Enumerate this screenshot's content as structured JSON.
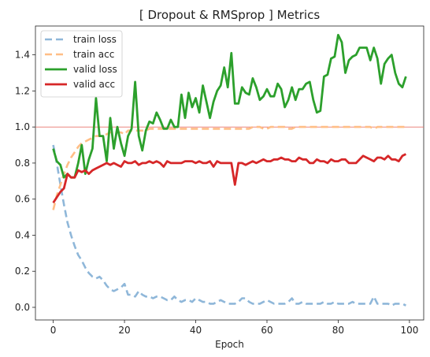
{
  "chart_data": {
    "type": "line",
    "title": "[ Dropout & RMSprop ]   Metrics",
    "xlabel": "Epoch",
    "ylabel": "",
    "xlim": [
      -5,
      104
    ],
    "ylim": [
      -0.07,
      1.56
    ],
    "xticks": [
      0,
      20,
      40,
      60,
      80,
      100
    ],
    "yticks": [
      0.0,
      0.2,
      0.4,
      0.6,
      0.8,
      1.0,
      1.2,
      1.4
    ],
    "ytick_labels": [
      "0.0",
      "0.2",
      "0.4",
      "0.6",
      "0.8",
      "1.0",
      "1.2",
      "1.4"
    ],
    "grid": false,
    "legend_position": "top-left",
    "reference_line": {
      "y": 1.0,
      "color": "#e8746c"
    },
    "series": [
      {
        "name": "train loss",
        "color": "#8fb7d9",
        "style": "dashed",
        "x": [
          0,
          1,
          2,
          3,
          4,
          5,
          6,
          7,
          8,
          9,
          10,
          11,
          12,
          13,
          14,
          15,
          16,
          17,
          18,
          19,
          20,
          21,
          22,
          23,
          24,
          25,
          26,
          27,
          28,
          29,
          30,
          31,
          32,
          33,
          34,
          35,
          36,
          37,
          38,
          39,
          40,
          41,
          42,
          43,
          44,
          45,
          46,
          47,
          48,
          49,
          50,
          51,
          52,
          53,
          54,
          55,
          56,
          57,
          58,
          59,
          60,
          61,
          62,
          63,
          64,
          65,
          66,
          67,
          68,
          69,
          70,
          71,
          72,
          73,
          74,
          75,
          76,
          77,
          78,
          79,
          80,
          81,
          82,
          83,
          84,
          85,
          86,
          87,
          88,
          89,
          90,
          91,
          92,
          93,
          94,
          95,
          96,
          97,
          98,
          99
        ],
        "values": [
          0.9,
          0.8,
          0.68,
          0.57,
          0.47,
          0.4,
          0.34,
          0.29,
          0.26,
          0.22,
          0.19,
          0.17,
          0.16,
          0.17,
          0.15,
          0.12,
          0.1,
          0.09,
          0.1,
          0.11,
          0.13,
          0.07,
          0.07,
          0.06,
          0.09,
          0.07,
          0.06,
          0.06,
          0.05,
          0.06,
          0.06,
          0.05,
          0.04,
          0.04,
          0.06,
          0.04,
          0.03,
          0.04,
          0.04,
          0.03,
          0.05,
          0.04,
          0.03,
          0.03,
          0.02,
          0.02,
          0.03,
          0.04,
          0.03,
          0.02,
          0.02,
          0.02,
          0.03,
          0.05,
          0.05,
          0.03,
          0.02,
          0.02,
          0.02,
          0.03,
          0.04,
          0.03,
          0.02,
          0.02,
          0.02,
          0.02,
          0.03,
          0.05,
          0.02,
          0.02,
          0.03,
          0.02,
          0.02,
          0.02,
          0.02,
          0.02,
          0.03,
          0.02,
          0.02,
          0.03,
          0.02,
          0.02,
          0.02,
          0.02,
          0.03,
          0.02,
          0.02,
          0.02,
          0.02,
          0.02,
          0.06,
          0.02,
          0.02,
          0.02,
          0.02,
          0.01,
          0.02,
          0.02,
          0.02,
          0.01
        ]
      },
      {
        "name": "train acc",
        "color": "#ffbe86",
        "style": "dashed",
        "x": [
          0,
          1,
          2,
          3,
          4,
          5,
          6,
          7,
          8,
          9,
          10,
          11,
          12,
          13,
          14,
          15,
          16,
          17,
          18,
          19,
          20,
          21,
          22,
          23,
          24,
          25,
          26,
          27,
          28,
          29,
          30,
          31,
          32,
          33,
          34,
          35,
          36,
          37,
          38,
          39,
          40,
          41,
          42,
          43,
          44,
          45,
          46,
          47,
          48,
          49,
          50,
          51,
          52,
          53,
          54,
          55,
          56,
          57,
          58,
          59,
          60,
          61,
          62,
          63,
          64,
          65,
          66,
          67,
          68,
          69,
          70,
          71,
          72,
          73,
          74,
          75,
          76,
          77,
          78,
          79,
          80,
          81,
          82,
          83,
          84,
          85,
          86,
          87,
          88,
          89,
          90,
          91,
          92,
          93,
          94,
          95,
          96,
          97,
          98,
          99
        ],
        "values": [
          0.54,
          0.62,
          0.68,
          0.74,
          0.79,
          0.83,
          0.86,
          0.89,
          0.91,
          0.92,
          0.93,
          0.94,
          0.95,
          0.95,
          0.95,
          0.96,
          0.97,
          0.97,
          0.97,
          0.97,
          0.96,
          0.98,
          0.98,
          0.98,
          0.98,
          0.98,
          0.98,
          0.99,
          0.99,
          0.99,
          0.99,
          0.99,
          0.99,
          0.99,
          0.99,
          0.99,
          0.99,
          0.99,
          0.99,
          0.99,
          0.99,
          0.99,
          0.99,
          0.99,
          0.99,
          0.99,
          0.99,
          0.99,
          0.99,
          0.99,
          0.99,
          0.99,
          0.99,
          0.99,
          0.99,
          0.99,
          1.0,
          1.0,
          1.0,
          0.99,
          0.99,
          1.0,
          1.0,
          1.0,
          1.0,
          1.0,
          0.99,
          0.99,
          1.0,
          1.0,
          1.0,
          1.0,
          1.0,
          1.0,
          1.0,
          1.0,
          1.0,
          1.0,
          1.0,
          1.0,
          1.0,
          1.0,
          1.0,
          1.0,
          1.0,
          1.0,
          1.0,
          1.0,
          1.0,
          1.0,
          0.99,
          1.0,
          1.0,
          1.0,
          1.0,
          1.0,
          1.0,
          1.0,
          1.0,
          1.0
        ]
      },
      {
        "name": "valid loss",
        "color": "#2ca02c",
        "style": "solid",
        "x": [
          0,
          1,
          2,
          3,
          4,
          5,
          6,
          7,
          8,
          9,
          10,
          11,
          12,
          13,
          14,
          15,
          16,
          17,
          18,
          19,
          20,
          21,
          22,
          23,
          24,
          25,
          26,
          27,
          28,
          29,
          30,
          31,
          32,
          33,
          34,
          35,
          36,
          37,
          38,
          39,
          40,
          41,
          42,
          43,
          44,
          45,
          46,
          47,
          48,
          49,
          50,
          51,
          52,
          53,
          54,
          55,
          56,
          57,
          58,
          59,
          60,
          61,
          62,
          63,
          64,
          65,
          66,
          67,
          68,
          69,
          70,
          71,
          72,
          73,
          74,
          75,
          76,
          77,
          78,
          79,
          80,
          81,
          82,
          83,
          84,
          85,
          86,
          87,
          88,
          89,
          90,
          91,
          92,
          93,
          94,
          95,
          96,
          97,
          98,
          99
        ],
        "values": [
          0.88,
          0.81,
          0.79,
          0.72,
          0.74,
          0.72,
          0.72,
          0.8,
          0.9,
          0.74,
          0.82,
          0.88,
          1.16,
          0.95,
          0.95,
          0.81,
          1.05,
          0.88,
          1.0,
          0.91,
          0.84,
          0.95,
          0.99,
          1.25,
          0.95,
          0.87,
          0.98,
          1.03,
          1.02,
          1.08,
          1.04,
          0.99,
          0.99,
          1.04,
          1.0,
          1.0,
          1.18,
          1.05,
          1.19,
          1.11,
          1.16,
          1.08,
          1.23,
          1.14,
          1.05,
          1.14,
          1.2,
          1.23,
          1.33,
          1.22,
          1.41,
          1.13,
          1.13,
          1.22,
          1.19,
          1.18,
          1.27,
          1.22,
          1.15,
          1.17,
          1.21,
          1.17,
          1.17,
          1.24,
          1.21,
          1.11,
          1.15,
          1.22,
          1.15,
          1.21,
          1.21,
          1.24,
          1.25,
          1.15,
          1.08,
          1.09,
          1.28,
          1.29,
          1.38,
          1.39,
          1.51,
          1.47,
          1.3,
          1.37,
          1.39,
          1.4,
          1.44,
          1.44,
          1.44,
          1.37,
          1.44,
          1.38,
          1.24,
          1.35,
          1.38,
          1.4,
          1.3,
          1.24,
          1.22,
          1.28
        ]
      },
      {
        "name": "valid acc",
        "color": "#d62728",
        "style": "solid",
        "x": [
          0,
          1,
          2,
          3,
          4,
          5,
          6,
          7,
          8,
          9,
          10,
          11,
          12,
          13,
          14,
          15,
          16,
          17,
          18,
          19,
          20,
          21,
          22,
          23,
          24,
          25,
          26,
          27,
          28,
          29,
          30,
          31,
          32,
          33,
          34,
          35,
          36,
          37,
          38,
          39,
          40,
          41,
          42,
          43,
          44,
          45,
          46,
          47,
          48,
          49,
          50,
          51,
          52,
          53,
          54,
          55,
          56,
          57,
          58,
          59,
          60,
          61,
          62,
          63,
          64,
          65,
          66,
          67,
          68,
          69,
          70,
          71,
          72,
          73,
          74,
          75,
          76,
          77,
          78,
          79,
          80,
          81,
          82,
          83,
          84,
          85,
          86,
          87,
          88,
          89,
          90,
          91,
          92,
          93,
          94,
          95,
          96,
          97,
          98,
          99
        ],
        "values": [
          0.58,
          0.61,
          0.64,
          0.66,
          0.74,
          0.72,
          0.72,
          0.76,
          0.75,
          0.76,
          0.74,
          0.76,
          0.77,
          0.78,
          0.79,
          0.8,
          0.79,
          0.8,
          0.79,
          0.78,
          0.81,
          0.8,
          0.8,
          0.81,
          0.79,
          0.8,
          0.8,
          0.81,
          0.8,
          0.81,
          0.8,
          0.78,
          0.81,
          0.8,
          0.8,
          0.8,
          0.8,
          0.81,
          0.81,
          0.81,
          0.8,
          0.81,
          0.8,
          0.8,
          0.81,
          0.78,
          0.81,
          0.8,
          0.8,
          0.8,
          0.8,
          0.68,
          0.8,
          0.8,
          0.79,
          0.8,
          0.81,
          0.8,
          0.81,
          0.82,
          0.81,
          0.81,
          0.82,
          0.82,
          0.83,
          0.82,
          0.82,
          0.81,
          0.81,
          0.83,
          0.82,
          0.82,
          0.8,
          0.8,
          0.82,
          0.81,
          0.81,
          0.8,
          0.82,
          0.81,
          0.81,
          0.82,
          0.82,
          0.8,
          0.8,
          0.8,
          0.82,
          0.84,
          0.83,
          0.82,
          0.81,
          0.83,
          0.83,
          0.82,
          0.84,
          0.82,
          0.82,
          0.81,
          0.84,
          0.85
        ]
      }
    ]
  }
}
